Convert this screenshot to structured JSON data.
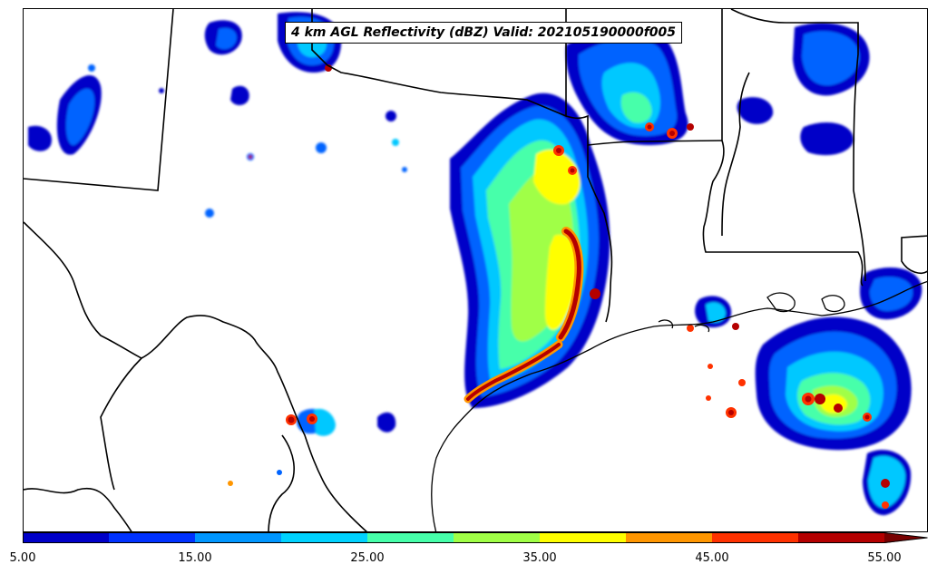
{
  "title": "4 km AGL Reflectivity (dBZ) Valid: 202105190000f005",
  "colorbar": {
    "tick_labels": [
      "5.00",
      "15.00",
      "25.00",
      "35.00",
      "45.00",
      "55.00"
    ],
    "colors": [
      "#0000c8",
      "#0032ff",
      "#0096ff",
      "#00d2ff",
      "#46ffaa",
      "#a0ff46",
      "#ffff00",
      "#ff9600",
      "#ff3200",
      "#b40000",
      "#780000"
    ],
    "extend": "max"
  },
  "map": {
    "background": "#ffffff",
    "boundary_color": "#000000"
  }
}
